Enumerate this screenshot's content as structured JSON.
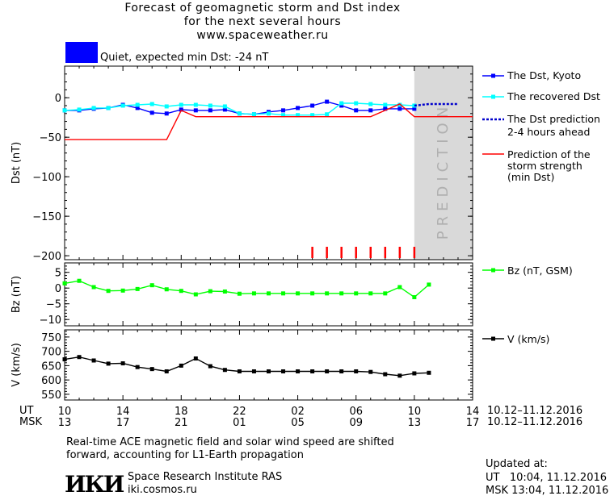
{
  "header": {
    "title_line1": "Forecast of geomagnetic storm and Dst index",
    "title_line2": "for the next several hours",
    "title_line3": "www.spaceweather.ru",
    "status": "Quiet, expected min Dst: -24 nT",
    "status_color": "#0000ff"
  },
  "legend": {
    "dst_kyoto": "The Dst, Kyoto",
    "recovered": "The recovered Dst",
    "prediction_line1": "The Dst prediction",
    "prediction_line2": "2-4 hours ahead",
    "strength_line1": "Prediction of the",
    "strength_line2": "storm strength",
    "strength_line3": "(min Dst)",
    "bz": "Bz (nT, GSM)",
    "v": "V (km/s)"
  },
  "prediction_label": "PREDICTION",
  "time_axis": {
    "ut_label": "UT",
    "msk_label": "MSK",
    "ut_ticks": [
      "10",
      "14",
      "18",
      "22",
      "02",
      "06",
      "10",
      "14"
    ],
    "msk_ticks": [
      "13",
      "17",
      "21",
      "01",
      "05",
      "09",
      "13",
      "17"
    ],
    "ut_range": "10.12–11.12.2016",
    "msk_range": "10.12–11.12.2016"
  },
  "footer": {
    "note_line1": "Real-time ACE magnetic field and solar wind speed are shifted",
    "note_line2": "forward, accounting for L1-Earth propagation",
    "logo": "ИКИ",
    "institute": "Space Research Institute RAS",
    "site": "iki.cosmos.ru",
    "updated_label": "Updated at:",
    "updated_ut": "UT   10:04, 11.12.2016",
    "updated_msk": "MSK 13:04, 11.12.2016"
  },
  "chart_data": [
    {
      "type": "line",
      "ylabel": "Dst (nT)",
      "ylim": [
        -205,
        40
      ],
      "xlim": [
        10,
        38
      ],
      "yticks": [
        0,
        -50,
        -100,
        -150,
        -200
      ],
      "prediction_zone": [
        34,
        38
      ],
      "series": [
        {
          "name": "The Dst, Kyoto",
          "color": "#0000ff",
          "x": [
            10,
            11,
            12,
            13,
            14,
            15,
            16,
            17,
            18,
            19,
            20,
            21,
            22,
            23,
            24,
            25,
            26,
            27,
            28,
            29,
            30,
            31,
            32,
            33,
            34
          ],
          "y": [
            -16,
            -16,
            -14,
            -13,
            -9,
            -13,
            -19,
            -20,
            -15,
            -16,
            -16,
            -15,
            -20,
            -21,
            -18,
            -16,
            -13,
            -10,
            -5,
            -10,
            -16,
            -16,
            -14,
            -14,
            -14
          ]
        },
        {
          "name": "The recovered Dst",
          "color": "#00ffff",
          "x": [
            10,
            11,
            12,
            13,
            14,
            15,
            16,
            17,
            18,
            19,
            20,
            21,
            22,
            23,
            24,
            25,
            26,
            27,
            28,
            29,
            30,
            31,
            32,
            33,
            34
          ],
          "y": [
            -16,
            -15,
            -13,
            -13,
            -10,
            -9,
            -8,
            -11,
            -9,
            -9,
            -10,
            -11,
            -20,
            -21,
            -20,
            -22,
            -22,
            -22,
            -21,
            -7,
            -7,
            -8,
            -9,
            -9,
            -10
          ]
        },
        {
          "name": "The Dst prediction 2-4 hours ahead",
          "color": "#0000cc",
          "x": [
            34,
            35,
            36,
            37
          ],
          "y": [
            -10,
            -8,
            -8,
            -8
          ]
        },
        {
          "name": "Prediction of the storm strength (min Dst)",
          "color": "#ff0000",
          "x": [
            10,
            17,
            18,
            19,
            31,
            33,
            34,
            38
          ],
          "y": [
            -53,
            -53,
            -16,
            -24,
            -24,
            -8,
            -24,
            -24
          ]
        }
      ],
      "storm_markers_x": [
        27,
        28,
        29,
        30,
        31,
        32,
        33,
        34
      ],
      "storm_marker_color": "#ff0000"
    },
    {
      "type": "line",
      "ylabel": "Bz (nT)",
      "ylim": [
        -12,
        8
      ],
      "xlim": [
        10,
        38
      ],
      "yticks": [
        5,
        0,
        -5,
        -10
      ],
      "series": [
        {
          "name": "Bz (nT, GSM)",
          "color": "#00ff00",
          "x": [
            10,
            11,
            12,
            13,
            14,
            15,
            16,
            17,
            18,
            19,
            20,
            21,
            22,
            23,
            24,
            25,
            26,
            27,
            28,
            29,
            30,
            31,
            32,
            33,
            34,
            35
          ],
          "y": [
            1.5,
            2.3,
            0.3,
            -0.9,
            -0.8,
            -0.3,
            0.9,
            -0.4,
            -0.9,
            -2.0,
            -1.0,
            -1.1,
            -1.8,
            -1.7,
            -1.7,
            -1.7,
            -1.7,
            -1.7,
            -1.7,
            -1.7,
            -1.7,
            -1.7,
            -1.7,
            0.3,
            -2.9,
            1.1
          ]
        }
      ]
    },
    {
      "type": "line",
      "ylabel": "V (km/s)",
      "ylim": [
        530,
        775
      ],
      "xlim": [
        10,
        38
      ],
      "yticks": [
        750,
        700,
        650,
        600,
        550
      ],
      "series": [
        {
          "name": "V (km/s)",
          "color": "#000000",
          "x": [
            10,
            11,
            12,
            13,
            14,
            15,
            16,
            17,
            18,
            19,
            20,
            21,
            22,
            23,
            24,
            25,
            26,
            27,
            28,
            29,
            30,
            31,
            32,
            33,
            34,
            35
          ],
          "y": [
            672,
            680,
            668,
            657,
            658,
            645,
            638,
            630,
            650,
            675,
            648,
            635,
            630,
            630,
            630,
            630,
            630,
            630,
            630,
            630,
            630,
            628,
            620,
            615,
            623,
            625
          ]
        }
      ]
    }
  ]
}
